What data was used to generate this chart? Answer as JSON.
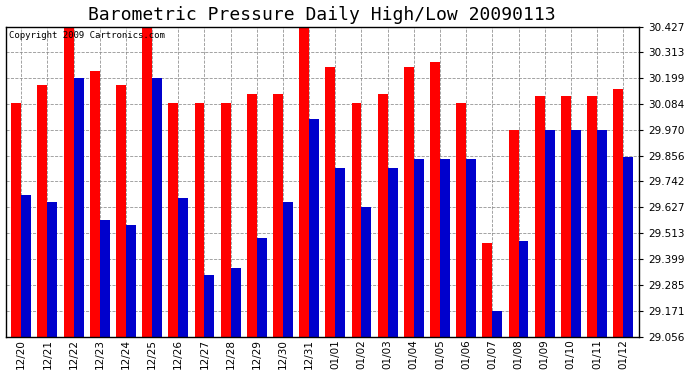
{
  "title": "Barometric Pressure Daily High/Low 20090113",
  "copyright_text": "Copyright 2009 Cartronics.com",
  "dates": [
    "12/20",
    "12/21",
    "12/22",
    "12/23",
    "12/24",
    "12/25",
    "12/26",
    "12/27",
    "12/28",
    "12/29",
    "12/30",
    "12/31",
    "01/01",
    "01/02",
    "01/03",
    "01/04",
    "01/05",
    "01/06",
    "01/07",
    "01/08",
    "01/09",
    "01/10",
    "01/11",
    "01/12"
  ],
  "highs": [
    30.09,
    30.17,
    30.43,
    30.23,
    30.17,
    30.43,
    30.09,
    30.09,
    30.09,
    30.13,
    30.13,
    30.43,
    30.25,
    30.09,
    30.13,
    30.25,
    30.27,
    30.09,
    29.47,
    29.97,
    30.12,
    30.12,
    30.12,
    30.15
  ],
  "lows": [
    29.68,
    29.65,
    30.2,
    29.57,
    29.55,
    30.2,
    29.67,
    29.33,
    29.36,
    29.49,
    29.65,
    30.02,
    29.8,
    29.63,
    29.8,
    29.84,
    29.84,
    29.84,
    29.17,
    29.48,
    29.97,
    29.97,
    29.97,
    29.85
  ],
  "high_color": "#ff0000",
  "low_color": "#0000cc",
  "background_color": "#ffffff",
  "plot_background": "#ffffff",
  "grid_color": "#888888",
  "yticks": [
    29.056,
    29.171,
    29.285,
    29.399,
    29.513,
    29.627,
    29.742,
    29.856,
    29.97,
    30.084,
    30.199,
    30.313,
    30.427
  ],
  "ymin": 29.056,
  "ymax": 30.427,
  "title_fontsize": 13,
  "tick_fontsize": 7.5,
  "bar_width": 0.38
}
